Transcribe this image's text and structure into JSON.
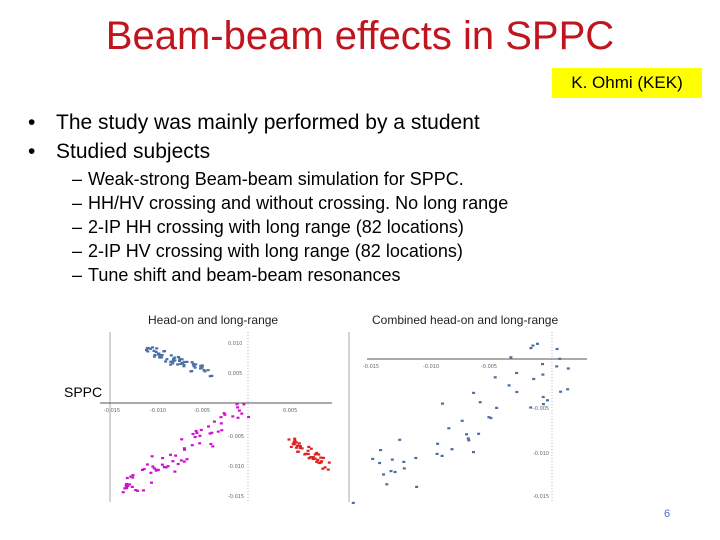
{
  "slide": {
    "title": "Beam-beam effects in SPPC",
    "author": "K. Ohmi (KEK)",
    "bullets": [
      "The study was mainly performed by a student",
      "Studied subjects"
    ],
    "sub_bullets": [
      "Weak-strong Beam-beam simulation for SPPC.",
      "HH/HV crossing and without crossing. No long range",
      "2-IP HH crossing with long range (82 locations)",
      "2-IP HV crossing with long range (82 locations)",
      "Tune shift and beam-beam resonances"
    ],
    "bullet_glyph": "•",
    "dash_glyph": "–",
    "page_number": "6",
    "side_label": "SPPC"
  },
  "figures": {
    "left": {
      "title": "Head-on and long-range",
      "x_ticks": [
        "-0.015",
        "-0.010",
        "-0.005",
        "0.005"
      ],
      "y_ticks": [
        "0.010",
        "0.005",
        "-0.005",
        "-0.010",
        "-0.015"
      ]
    },
    "right": {
      "title": "Combined head-on and long-range",
      "x_ticks": [
        "-0.015",
        "-0.010",
        "-0.005"
      ],
      "y_ticks": [
        "-0.005",
        "-0.010",
        "-0.015"
      ]
    }
  },
  "colors": {
    "title": "#c0141e",
    "highlight": "#ffff00",
    "blue": "#4a6fa5",
    "magenta": "#d010d0",
    "red": "#e02020"
  }
}
